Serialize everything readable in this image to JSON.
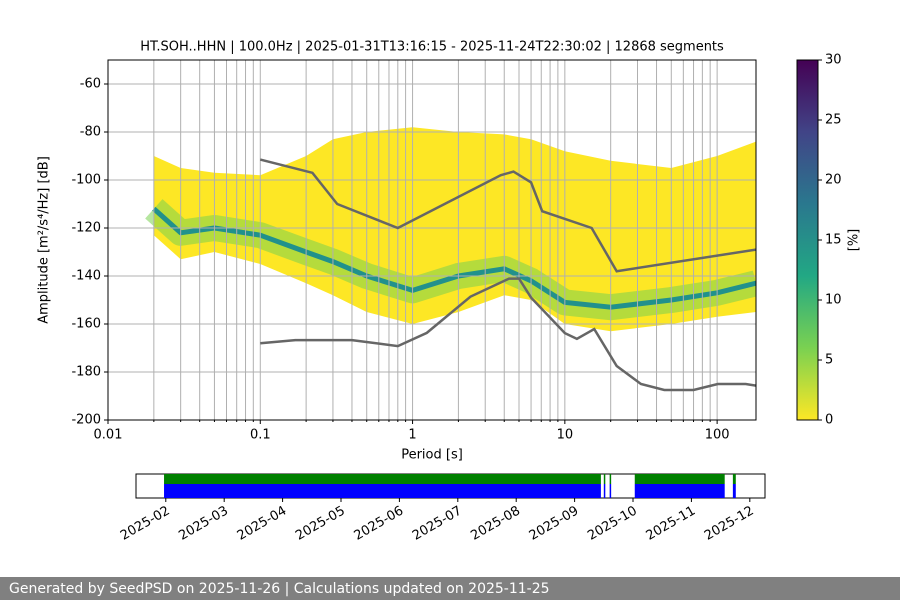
{
  "chart_data": {
    "type": "ppsd",
    "title": "HT.SOH..HHN | 100.0Hz | 2025-01-31T13:16:15 - 2025-11-24T22:30:02 | 12868 segments",
    "xlabel": "Period [s]",
    "ylabel": "Amplitude [m²/s⁴/Hz] [dB]",
    "xscale": "log",
    "xlim": [
      0.01,
      180
    ],
    "xticks": [
      0.01,
      0.1,
      1,
      10,
      100
    ],
    "xminorticks": [
      0.02,
      0.03,
      0.04,
      0.05,
      0.06,
      0.07,
      0.08,
      0.09,
      0.2,
      0.3,
      0.4,
      0.5,
      0.6,
      0.7,
      0.8,
      0.9,
      2,
      3,
      4,
      5,
      6,
      7,
      8,
      9,
      20,
      30,
      40,
      50,
      60,
      70,
      80,
      90
    ],
    "ylim": [
      -200,
      -50
    ],
    "yticks": [
      -200,
      -180,
      -160,
      -140,
      -120,
      -100,
      -80,
      -60
    ],
    "grid": true,
    "density": {
      "x": [
        0.02,
        0.03,
        0.05,
        0.1,
        0.2,
        0.3,
        0.5,
        1,
        2,
        4,
        6,
        10,
        20,
        50,
        100,
        180
      ],
      "upper": [
        -90,
        -95,
        -97,
        -98,
        -90,
        -83,
        -80,
        -78,
        -80,
        -81,
        -83,
        -88,
        -92,
        -95,
        -90,
        -84
      ],
      "lower": [
        -123,
        -133,
        -130,
        -135,
        -143,
        -148,
        -155,
        -160,
        -155,
        -148,
        -150,
        -160,
        -163,
        -160,
        -157,
        -155
      ],
      "mode": [
        -112,
        -122,
        -120,
        -123,
        -130,
        -134,
        -140,
        -146,
        -140,
        -137,
        -142,
        -151,
        -153,
        -150,
        -147,
        -143
      ],
      "color": "#fde725",
      "band_color": "#7ad151",
      "mode_color": "#21918c"
    },
    "series": [
      {
        "color": "#666666",
        "x": [
          0.1,
          0.22,
          0.32,
          0.8,
          3.8,
          4.6,
          6,
          7.1,
          15,
          21.9,
          180
        ],
        "values": [
          -91.5,
          -97,
          -110,
          -120,
          -98,
          -96.5,
          -101,
          -113,
          -120,
          -138,
          -129
        ]
      },
      {
        "color": "#666666",
        "x": [
          0.1,
          0.17,
          0.4,
          0.8,
          1.24,
          2.4,
          4.3,
          5,
          6,
          10,
          12,
          15.6,
          21.9,
          31.6,
          45,
          70,
          101,
          154,
          180
        ],
        "values": [
          -168,
          -166.7,
          -166.7,
          -169.2,
          -163.7,
          -148.6,
          -141.1,
          -141.1,
          -149,
          -163.8,
          -166.2,
          -162.1,
          -177.5,
          -185,
          -187.5,
          -187.5,
          -185,
          -185,
          -185.7
        ]
      }
    ],
    "colorbar": {
      "label": "[%]",
      "zlim": [
        0,
        30
      ],
      "zticks": [
        0,
        5,
        10,
        15,
        20,
        25,
        30
      ]
    },
    "timeline": {
      "xlim": [
        -0.51,
        10.26
      ],
      "ticks": [
        {
          "value": 0,
          "label": "2025-02"
        },
        {
          "value": 1,
          "label": "2025-03"
        },
        {
          "value": 2,
          "label": "2025-04"
        },
        {
          "value": 3,
          "label": "2025-05"
        },
        {
          "value": 4,
          "label": "2025-06"
        },
        {
          "value": 5,
          "label": "2025-07"
        },
        {
          "value": 6,
          "label": "2025-08"
        },
        {
          "value": 7,
          "label": "2025-09"
        },
        {
          "value": 8,
          "label": "2025-10"
        },
        {
          "value": 9,
          "label": "2025-11"
        },
        {
          "value": 10,
          "label": "2025-12"
        }
      ],
      "segments": [
        [
          -0.03,
          7.45
        ],
        [
          7.5,
          7.52
        ],
        [
          7.6,
          7.62
        ],
        [
          8.03,
          9.57
        ],
        [
          9.71,
          9.76
        ]
      ],
      "colors": [
        "#008000",
        "#0000ff"
      ]
    }
  },
  "footer": "Generated by SeedPSD on 2025-11-26 | Calculations updated on 2025-11-25"
}
